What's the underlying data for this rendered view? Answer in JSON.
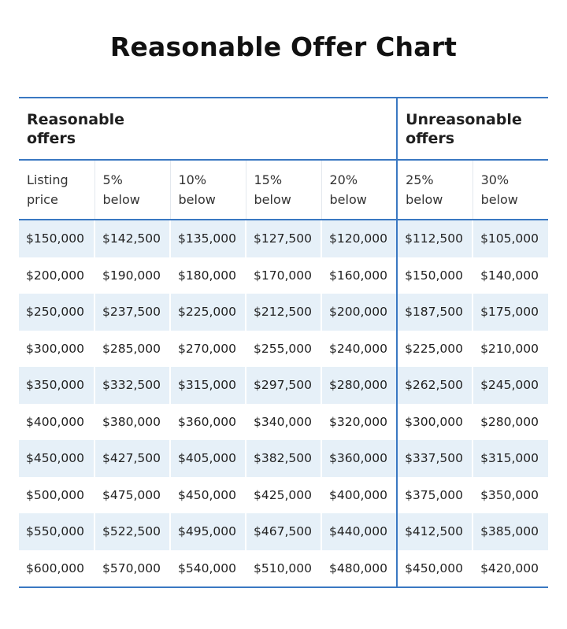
{
  "title": "Reasonable Offer Chart",
  "table": {
    "groups": [
      "Reasonable offers",
      "Unreasonable offers"
    ],
    "columns": [
      "Listing price",
      "5% below",
      "10% below",
      "15% below",
      "20% below",
      "25% below",
      "30% below"
    ],
    "rows": [
      [
        "$150,000",
        "$142,500",
        "$135,000",
        "$127,500",
        "$120,000",
        "$112,500",
        "$105,000"
      ],
      [
        "$200,000",
        "$190,000",
        "$180,000",
        "$170,000",
        "$160,000",
        "$150,000",
        "$140,000"
      ],
      [
        "$250,000",
        "$237,500",
        "$225,000",
        "$212,500",
        "$200,000",
        "$187,500",
        "$175,000"
      ],
      [
        "$300,000",
        "$285,000",
        "$270,000",
        "$255,000",
        "$240,000",
        "$225,000",
        "$210,000"
      ],
      [
        "$350,000",
        "$332,500",
        "$315,000",
        "$297,500",
        "$280,000",
        "$262,500",
        "$245,000"
      ],
      [
        "$400,000",
        "$380,000",
        "$360,000",
        "$340,000",
        "$320,000",
        "$300,000",
        "$280,000"
      ],
      [
        "$450,000",
        "$427,500",
        "$405,000",
        "$382,500",
        "$360,000",
        "$337,500",
        "$315,000"
      ],
      [
        "$500,000",
        "$475,000",
        "$450,000",
        "$425,000",
        "$400,000",
        "$375,000",
        "$350,000"
      ],
      [
        "$550,000",
        "$522,500",
        "$495,000",
        "$467,500",
        "$440,000",
        "$412,500",
        "$385,000"
      ],
      [
        "$600,000",
        "$570,000",
        "$540,000",
        "$510,000",
        "$480,000",
        "$450,000",
        "$420,000"
      ]
    ]
  }
}
